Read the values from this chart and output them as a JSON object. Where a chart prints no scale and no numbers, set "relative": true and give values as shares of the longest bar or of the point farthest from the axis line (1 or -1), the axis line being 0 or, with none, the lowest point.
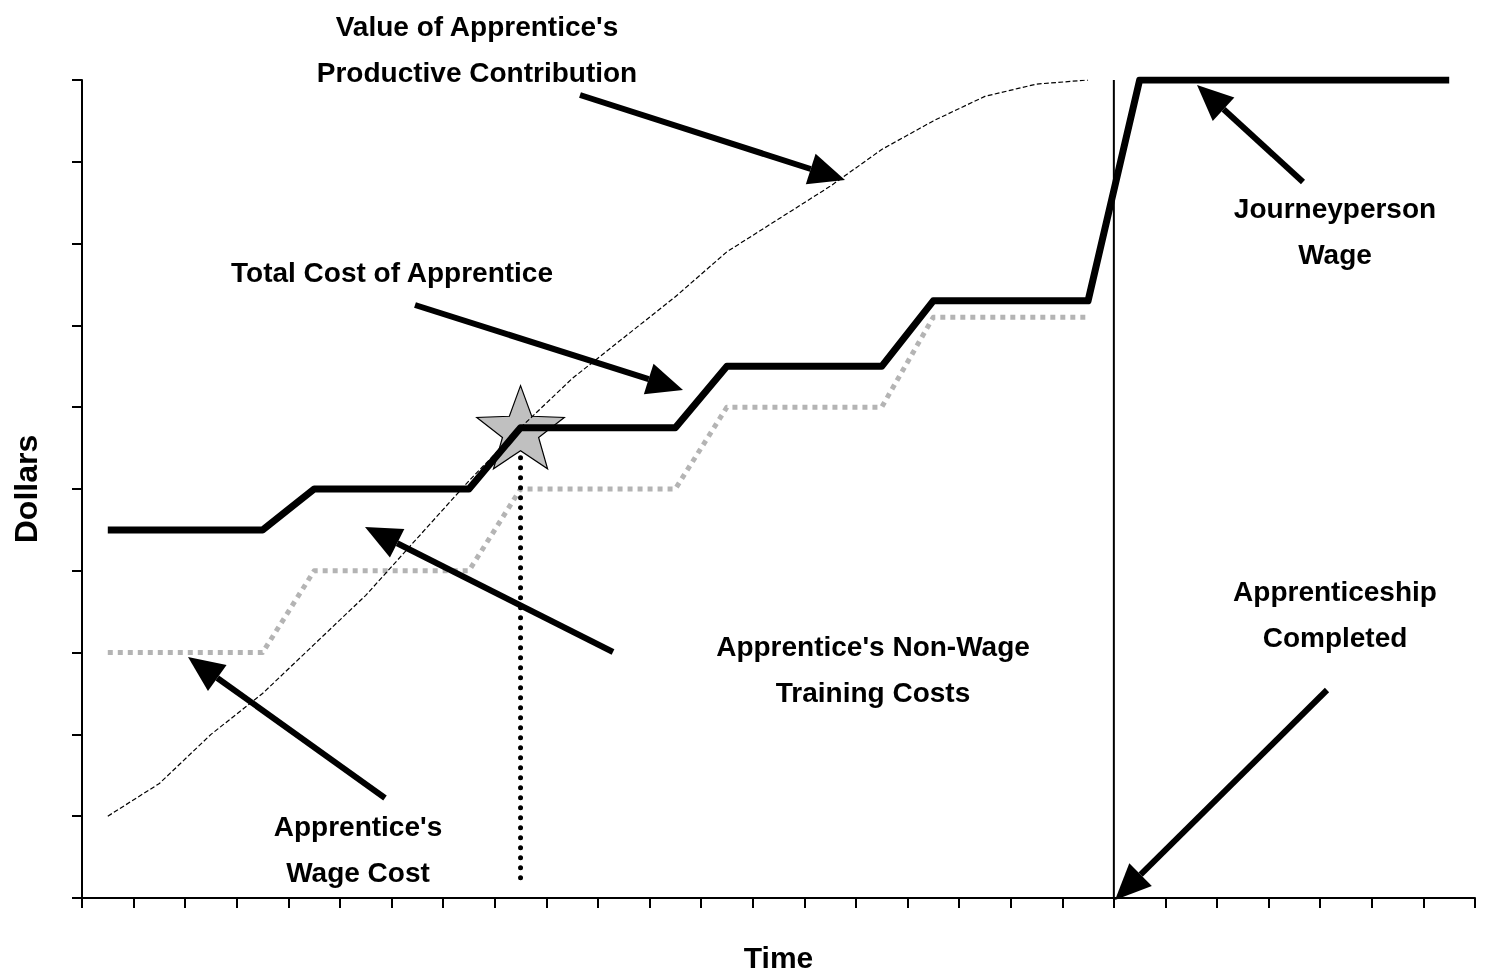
{
  "chart_data": {
    "type": "line",
    "relative": true,
    "xlabel": "Time",
    "ylabel": "Dollars",
    "grid": false,
    "marker": "none",
    "categories": [
      null,
      null,
      null,
      null,
      null,
      null,
      null,
      null,
      null,
      null,
      null,
      null,
      null,
      null,
      null,
      null,
      null,
      null,
      null,
      null,
      null,
      null,
      null,
      null,
      null,
      null,
      null
    ],
    "series": [
      {
        "color": "#000000",
        "line_style": "solid",
        "values": [
          0.45,
          0.45,
          0.45,
          0.45,
          0.5,
          0.5,
          0.5,
          0.5,
          0.575,
          0.575,
          0.575,
          0.575,
          0.65,
          0.65,
          0.65,
          0.65,
          0.73,
          0.73,
          0.73,
          0.73,
          1,
          1,
          1,
          1,
          1,
          1,
          1
        ]
      },
      {
        "color": "#b4b4b4",
        "line_style": "dotted",
        "values": [
          0.3,
          0.3,
          0.3,
          0.3,
          0.4,
          0.4,
          0.4,
          0.4,
          0.5,
          0.5,
          0.5,
          0.5,
          0.6,
          0.6,
          0.6,
          0.6,
          0.71,
          0.71,
          0.71,
          0.71,
          null,
          null,
          null,
          null,
          null,
          null,
          null
        ]
      },
      {
        "color": "#000000",
        "line_style": "dashed",
        "values": [
          0.1,
          0.14,
          0.2,
          0.25,
          0.31,
          0.37,
          0.44,
          0.51,
          0.575,
          0.635,
          0.685,
          0.735,
          0.79,
          0.83,
          0.87,
          0.915,
          0.95,
          0.98,
          0.995,
          1,
          null,
          null,
          null,
          null,
          null,
          null,
          null
        ]
      }
    ],
    "annotations": [
      "Value of Apprentice's\nProductive Contribution",
      "Total Cost of Apprentice",
      "Journeyperson\nWage",
      "Apprentice's Non-Wage\nTraining Costs",
      "Apprentice's\nWage Cost",
      "Apprenticeship\nCompleted"
    ]
  }
}
